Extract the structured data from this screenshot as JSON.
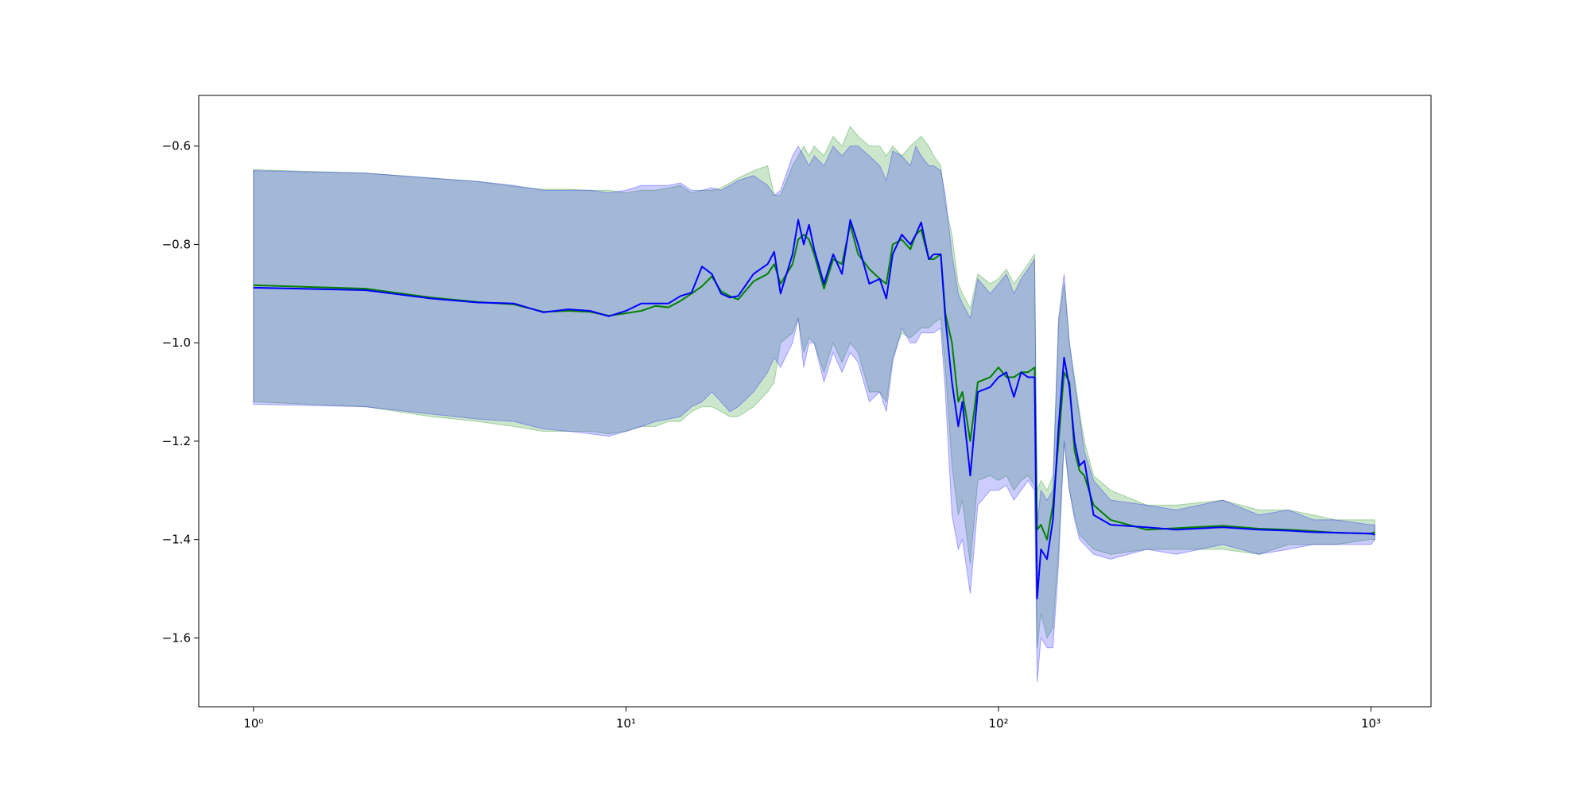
{
  "chart_data": {
    "type": "line",
    "xscale": "log",
    "xlim": [
      0.713,
      1449
    ],
    "ylim": [
      -1.74,
      -0.497
    ],
    "xticks": [
      {
        "value": 1,
        "label": "10⁰"
      },
      {
        "value": 10,
        "label": "10¹"
      },
      {
        "value": 100,
        "label": "10²"
      },
      {
        "value": 1000,
        "label": "10³"
      }
    ],
    "yticks": [
      {
        "value": -1.6,
        "label": "−1.6"
      },
      {
        "value": -1.4,
        "label": "−1.4"
      },
      {
        "value": -1.2,
        "label": "−1.2"
      },
      {
        "value": -1.0,
        "label": "−1.0"
      },
      {
        "value": -0.8,
        "label": "−0.8"
      },
      {
        "value": -0.6,
        "label": "−0.6"
      }
    ],
    "x": [
      1,
      2,
      3,
      4,
      5,
      6,
      7,
      8,
      9,
      10,
      11,
      12,
      13,
      14,
      15,
      16,
      17,
      18,
      19,
      20,
      22,
      24,
      25,
      26,
      28,
      29,
      30,
      31,
      32,
      34,
      36,
      38,
      40,
      42,
      45,
      48,
      50,
      52,
      55,
      58,
      60,
      62,
      65,
      67,
      70,
      72,
      75,
      78,
      80,
      84,
      88,
      95,
      100,
      105,
      110,
      115,
      120,
      125,
      127,
      130,
      135,
      140,
      145,
      150,
      155,
      160,
      165,
      170,
      180,
      200,
      250,
      300,
      400,
      500,
      600,
      700,
      800,
      1000,
      1024
    ],
    "series": [
      {
        "color": "#008000",
        "values": [
          -0.883,
          -0.89,
          -0.908,
          -0.917,
          -0.922,
          -0.937,
          -0.935,
          -0.937,
          -0.945,
          -0.94,
          -0.935,
          -0.925,
          -0.928,
          -0.915,
          -0.9,
          -0.885,
          -0.865,
          -0.895,
          -0.905,
          -0.912,
          -0.875,
          -0.86,
          -0.84,
          -0.88,
          -0.84,
          -0.79,
          -0.78,
          -0.79,
          -0.82,
          -0.89,
          -0.83,
          -0.84,
          -0.76,
          -0.82,
          -0.85,
          -0.87,
          -0.88,
          -0.8,
          -0.79,
          -0.81,
          -0.78,
          -0.77,
          -0.83,
          -0.83,
          -0.82,
          -0.94,
          -1.0,
          -1.12,
          -1.1,
          -1.2,
          -1.08,
          -1.07,
          -1.05,
          -1.07,
          -1.07,
          -1.06,
          -1.06,
          -1.05,
          -1.38,
          -1.37,
          -1.4,
          -1.33,
          -1.2,
          -1.06,
          -1.08,
          -1.22,
          -1.26,
          -1.27,
          -1.33,
          -1.36,
          -1.38,
          -1.377,
          -1.372,
          -1.378,
          -1.38,
          -1.383,
          -1.386,
          -1.388,
          -1.385
        ],
        "upper": [
          -0.648,
          -0.655,
          -0.665,
          -0.672,
          -0.682,
          -0.688,
          -0.688,
          -0.69,
          -0.69,
          -0.695,
          -0.69,
          -0.69,
          -0.685,
          -0.68,
          -0.695,
          -0.69,
          -0.69,
          -0.685,
          -0.675,
          -0.665,
          -0.65,
          -0.64,
          -0.7,
          -0.7,
          -0.64,
          -0.62,
          -0.6,
          -0.62,
          -0.6,
          -0.62,
          -0.58,
          -0.6,
          -0.56,
          -0.58,
          -0.6,
          -0.6,
          -0.62,
          -0.6,
          -0.62,
          -0.6,
          -0.59,
          -0.58,
          -0.6,
          -0.62,
          -0.64,
          -0.72,
          -0.78,
          -0.88,
          -0.9,
          -0.93,
          -0.86,
          -0.88,
          -0.87,
          -0.85,
          -0.88,
          -0.86,
          -0.84,
          -0.82,
          -1.3,
          -1.28,
          -1.3,
          -1.27,
          -0.96,
          -0.88,
          -1.0,
          -1.07,
          -1.14,
          -1.2,
          -1.27,
          -1.3,
          -1.33,
          -1.33,
          -1.32,
          -1.34,
          -1.34,
          -1.35,
          -1.36,
          -1.36,
          -1.36
        ],
        "lower": [
          -1.12,
          -1.13,
          -1.15,
          -1.16,
          -1.17,
          -1.18,
          -1.18,
          -1.18,
          -1.185,
          -1.18,
          -1.17,
          -1.17,
          -1.16,
          -1.16,
          -1.14,
          -1.13,
          -1.13,
          -1.14,
          -1.15,
          -1.15,
          -1.13,
          -1.1,
          -1.08,
          -1.0,
          -0.98,
          -0.95,
          -1.02,
          -0.99,
          -1.0,
          -1.06,
          -1.0,
          -1.04,
          -1.0,
          -1.02,
          -1.1,
          -1.1,
          -1.12,
          -1.03,
          -0.98,
          -0.99,
          -0.98,
          -0.97,
          -0.97,
          -0.96,
          -0.95,
          -1.05,
          -1.25,
          -1.35,
          -1.32,
          -1.45,
          -1.28,
          -1.27,
          -1.28,
          -1.27,
          -1.3,
          -1.28,
          -1.27,
          -1.29,
          -1.62,
          -1.55,
          -1.6,
          -1.58,
          -1.42,
          -1.2,
          -1.3,
          -1.35,
          -1.39,
          -1.4,
          -1.42,
          -1.43,
          -1.42,
          -1.42,
          -1.42,
          -1.43,
          -1.41,
          -1.41,
          -1.41,
          -1.4,
          -1.4
        ]
      },
      {
        "color": "#0000ff",
        "values": [
          -0.888,
          -0.893,
          -0.91,
          -0.918,
          -0.92,
          -0.938,
          -0.932,
          -0.935,
          -0.946,
          -0.935,
          -0.92,
          -0.92,
          -0.92,
          -0.905,
          -0.898,
          -0.845,
          -0.86,
          -0.9,
          -0.908,
          -0.905,
          -0.86,
          -0.84,
          -0.815,
          -0.9,
          -0.82,
          -0.75,
          -0.8,
          -0.76,
          -0.81,
          -0.88,
          -0.82,
          -0.86,
          -0.75,
          -0.8,
          -0.88,
          -0.87,
          -0.91,
          -0.82,
          -0.78,
          -0.8,
          -0.78,
          -0.755,
          -0.83,
          -0.82,
          -0.82,
          -0.95,
          -1.08,
          -1.17,
          -1.12,
          -1.27,
          -1.1,
          -1.09,
          -1.07,
          -1.06,
          -1.11,
          -1.06,
          -1.07,
          -1.07,
          -1.52,
          -1.42,
          -1.44,
          -1.36,
          -1.17,
          -1.03,
          -1.09,
          -1.2,
          -1.25,
          -1.24,
          -1.35,
          -1.37,
          -1.375,
          -1.38,
          -1.375,
          -1.38,
          -1.382,
          -1.385,
          -1.386,
          -1.388,
          -1.39
        ],
        "upper": [
          -0.65,
          -0.655,
          -0.665,
          -0.672,
          -0.68,
          -0.69,
          -0.69,
          -0.69,
          -0.695,
          -0.69,
          -0.68,
          -0.68,
          -0.68,
          -0.675,
          -0.69,
          -0.69,
          -0.685,
          -0.69,
          -0.68,
          -0.67,
          -0.66,
          -0.68,
          -0.7,
          -0.69,
          -0.62,
          -0.6,
          -0.62,
          -0.64,
          -0.62,
          -0.64,
          -0.6,
          -0.62,
          -0.6,
          -0.6,
          -0.62,
          -0.64,
          -0.67,
          -0.61,
          -0.62,
          -0.64,
          -0.6,
          -0.62,
          -0.64,
          -0.64,
          -0.65,
          -0.7,
          -0.82,
          -0.9,
          -0.92,
          -0.95,
          -0.87,
          -0.9,
          -0.88,
          -0.86,
          -0.9,
          -0.87,
          -0.85,
          -0.83,
          -1.37,
          -1.3,
          -1.32,
          -1.3,
          -0.95,
          -0.86,
          -1.0,
          -1.08,
          -1.15,
          -1.22,
          -1.28,
          -1.32,
          -1.33,
          -1.34,
          -1.32,
          -1.35,
          -1.34,
          -1.36,
          -1.36,
          -1.37,
          -1.37
        ],
        "lower": [
          -1.125,
          -1.13,
          -1.145,
          -1.155,
          -1.16,
          -1.175,
          -1.18,
          -1.185,
          -1.19,
          -1.18,
          -1.17,
          -1.16,
          -1.155,
          -1.15,
          -1.13,
          -1.12,
          -1.1,
          -1.12,
          -1.14,
          -1.13,
          -1.1,
          -1.06,
          -1.03,
          -1.05,
          -1.0,
          -0.95,
          -1.05,
          -1.0,
          -1.0,
          -1.08,
          -1.02,
          -1.06,
          -1.02,
          -1.04,
          -1.12,
          -1.1,
          -1.14,
          -1.04,
          -0.97,
          -1.0,
          -1.0,
          -0.98,
          -0.98,
          -0.98,
          -0.97,
          -1.1,
          -1.35,
          -1.42,
          -1.4,
          -1.51,
          -1.33,
          -1.3,
          -1.3,
          -1.29,
          -1.32,
          -1.3,
          -1.28,
          -1.3,
          -1.69,
          -1.6,
          -1.62,
          -1.62,
          -1.45,
          -1.2,
          -1.3,
          -1.36,
          -1.4,
          -1.41,
          -1.43,
          -1.44,
          -1.42,
          -1.43,
          -1.41,
          -1.43,
          -1.42,
          -1.41,
          -1.41,
          -1.41,
          -1.4
        ]
      }
    ]
  }
}
